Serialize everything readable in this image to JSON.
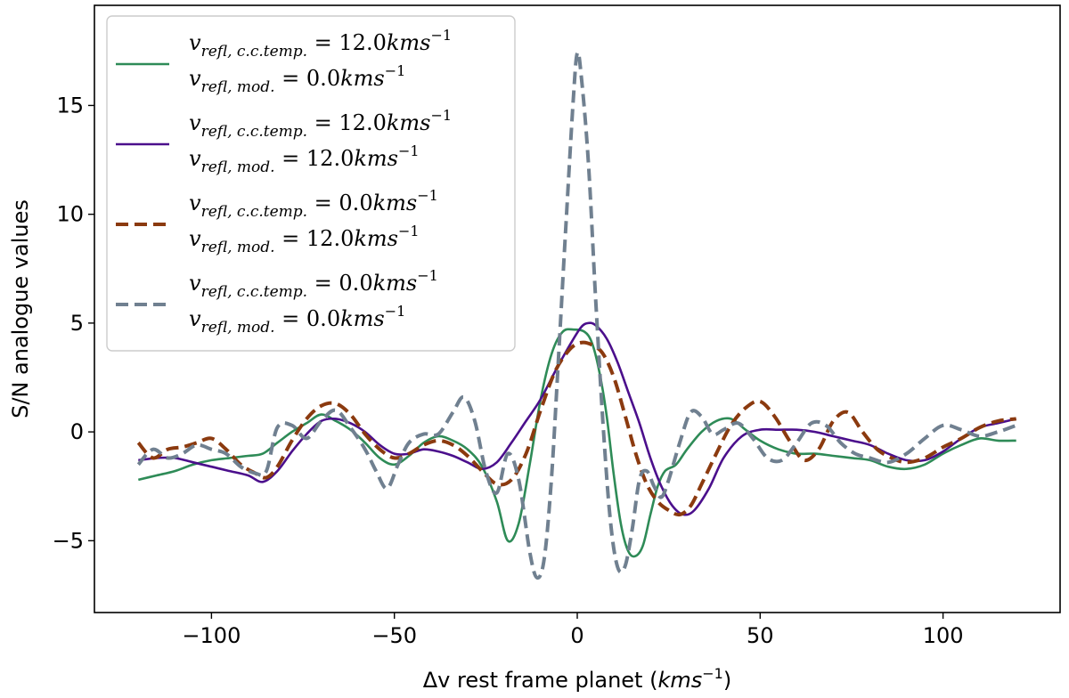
{
  "chart_data": {
    "type": "line",
    "xlabel": "Δv rest frame planet",
    "xlabel_unit": "kms",
    "xlabel_unit_exp": "−1",
    "ylabel": "S/N analogue values",
    "xlim": [
      -132,
      132
    ],
    "ylim": [
      -8.3,
      19.6
    ],
    "x_ticks": [
      -100,
      -50,
      0,
      50,
      100
    ],
    "x_tick_labels": [
      "−100",
      "−50",
      "0",
      "50",
      "100"
    ],
    "y_ticks": [
      -5,
      0,
      5,
      10,
      15
    ],
    "y_tick_labels": [
      "−5",
      "0",
      "5",
      "10",
      "15"
    ],
    "grid": false,
    "legend_position": "top-left",
    "series": [
      {
        "name_line1": "v_refl, c.c.temp. = 12.0kms⁻¹",
        "name_line2": "v_refl, mod. = 0.0kms⁻¹",
        "line1_value": "12.0kms",
        "line2_value": "0.0kms",
        "color": "#2e8b57",
        "dash": "solid",
        "x": [
          -120,
          -115,
          -110,
          -105,
          -100,
          -95,
          -90,
          -86,
          -82,
          -78,
          -74,
          -70,
          -66,
          -62,
          -58,
          -54,
          -50,
          -46,
          -42,
          -38,
          -34,
          -30,
          -26,
          -22,
          -19,
          -16,
          -13,
          -10,
          -7,
          -4,
          -1,
          2,
          4,
          6,
          8,
          10,
          12,
          14,
          16,
          18,
          20,
          22,
          24,
          27,
          30,
          34,
          38,
          42,
          46,
          50,
          55,
          60,
          65,
          70,
          75,
          80,
          85,
          90,
          95,
          100,
          105,
          110,
          115,
          120
        ],
        "y": [
          -2.2,
          -2.0,
          -1.8,
          -1.5,
          -1.3,
          -1.2,
          -1.1,
          -1.0,
          -0.5,
          0.0,
          0.4,
          0.8,
          0.5,
          0.1,
          -0.5,
          -1.2,
          -1.5,
          -1.1,
          -0.5,
          -0.2,
          -0.4,
          -0.8,
          -1.6,
          -3.2,
          -5.0,
          -4.2,
          -1.5,
          1.5,
          3.6,
          4.6,
          4.7,
          4.6,
          4.1,
          2.8,
          0.8,
          -2.0,
          -4.3,
          -5.5,
          -5.7,
          -5.2,
          -3.8,
          -2.5,
          -1.8,
          -1.5,
          -0.8,
          0.0,
          0.5,
          0.6,
          0.1,
          -0.4,
          -0.8,
          -1.0,
          -1.0,
          -1.1,
          -1.2,
          -1.3,
          -1.6,
          -1.7,
          -1.5,
          -1.0,
          -0.6,
          -0.3,
          -0.4,
          -0.4
        ]
      },
      {
        "name_line1": "v_refl, c.c.temp. = 12.0kms⁻¹",
        "name_line2": "v_refl, mod. = 12.0kms⁻¹",
        "line1_value": "12.0kms",
        "line2_value": "12.0kms",
        "color": "#4b0f8c",
        "dash": "solid",
        "x": [
          -120,
          -115,
          -110,
          -105,
          -100,
          -95,
          -90,
          -86,
          -82,
          -78,
          -74,
          -70,
          -66,
          -62,
          -58,
          -54,
          -50,
          -46,
          -42,
          -38,
          -34,
          -30,
          -26,
          -22,
          -18,
          -14,
          -10,
          -6,
          -2,
          1,
          3,
          5,
          8,
          11,
          14,
          17,
          20,
          23,
          26,
          29,
          32,
          36,
          40,
          45,
          50,
          55,
          60,
          65,
          70,
          75,
          80,
          85,
          90,
          95,
          100,
          105,
          110,
          115,
          120
        ],
        "y": [
          -1.3,
          -1.2,
          -1.2,
          -1.4,
          -1.6,
          -1.8,
          -2.0,
          -2.3,
          -1.8,
          -0.9,
          -0.1,
          0.5,
          0.6,
          0.4,
          0.0,
          -0.6,
          -1.0,
          -1.0,
          -0.8,
          -0.9,
          -1.1,
          -1.4,
          -1.7,
          -1.4,
          -0.5,
          0.5,
          1.5,
          2.8,
          4.0,
          4.8,
          5.0,
          4.9,
          4.3,
          3.2,
          1.8,
          0.4,
          -1.2,
          -2.5,
          -3.4,
          -3.8,
          -3.6,
          -2.6,
          -1.2,
          -0.2,
          0.1,
          0.1,
          0.1,
          0.0,
          -0.2,
          -0.4,
          -0.6,
          -1.0,
          -1.3,
          -1.3,
          -0.9,
          -0.3,
          0.2,
          0.4,
          0.6
        ]
      },
      {
        "name_line1": "v_refl, c.c.temp. = 0.0kms⁻¹",
        "name_line2": "v_refl, mod. = 12.0kms⁻¹",
        "line1_value": "0.0kms",
        "line2_value": "12.0kms",
        "color": "#8b3a0f",
        "dash": "dashed",
        "x": [
          -120,
          -116,
          -112,
          -108,
          -104,
          -100,
          -96,
          -92,
          -88,
          -85,
          -82,
          -78,
          -74,
          -70,
          -66,
          -62,
          -58,
          -54,
          -50,
          -46,
          -42,
          -38,
          -34,
          -30,
          -26,
          -22,
          -18,
          -14,
          -10,
          -6,
          -2,
          1,
          4,
          7,
          10,
          13,
          16,
          19,
          22,
          25,
          28,
          31,
          34,
          38,
          42,
          46,
          50,
          54,
          58,
          62,
          66,
          70,
          74,
          78,
          82,
          86,
          90,
          95,
          100,
          105,
          110,
          115,
          120
        ],
        "y": [
          -0.5,
          -1.2,
          -0.8,
          -0.7,
          -0.5,
          -0.3,
          -0.8,
          -1.5,
          -1.9,
          -2.1,
          -1.6,
          -0.4,
          0.6,
          1.2,
          1.3,
          0.8,
          -0.1,
          -0.8,
          -1.2,
          -1.0,
          -0.6,
          -0.4,
          -0.6,
          -1.1,
          -1.8,
          -2.4,
          -2.2,
          -1.0,
          1.0,
          2.8,
          3.8,
          4.1,
          4.0,
          3.6,
          2.5,
          0.8,
          -1.0,
          -2.4,
          -3.2,
          -3.6,
          -3.8,
          -3.4,
          -2.4,
          -1.0,
          0.3,
          1.1,
          1.4,
          0.7,
          -0.4,
          -1.3,
          -0.8,
          0.5,
          0.9,
          0.0,
          -0.8,
          -1.2,
          -1.4,
          -1.2,
          -0.7,
          -0.3,
          0.2,
          0.5,
          0.6
        ]
      },
      {
        "name_line1": "v_refl, c.c.temp. = 0.0kms⁻¹",
        "name_line2": "v_refl, mod. = 0.0kms⁻¹",
        "line1_value": "0.0kms",
        "line2_value": "0.0kms",
        "color": "#708090",
        "dash": "dashed",
        "x": [
          -120,
          -116,
          -112,
          -108,
          -104,
          -100,
          -96,
          -92,
          -88,
          -85,
          -82,
          -78,
          -74,
          -70,
          -66,
          -62,
          -58,
          -55,
          -52,
          -49,
          -46,
          -42,
          -38,
          -34,
          -31,
          -28,
          -25,
          -22,
          -19,
          -16,
          -13,
          -11,
          -9,
          -7,
          -5,
          -3,
          -1,
          0,
          1,
          3,
          5,
          7,
          9,
          11,
          13,
          15,
          17,
          19,
          21,
          23,
          25,
          28,
          31,
          34,
          37,
          40,
          44,
          48,
          52,
          56,
          60,
          64,
          68,
          72,
          76,
          80,
          85,
          90,
          95,
          100,
          105,
          110,
          115,
          120
        ],
        "y": [
          -1.5,
          -0.8,
          -1.2,
          -1.0,
          -0.6,
          -0.8,
          -1.0,
          -1.6,
          -1.9,
          -1.8,
          0.2,
          0.3,
          -0.3,
          0.5,
          1.0,
          0.2,
          -0.8,
          -1.8,
          -2.6,
          -1.5,
          -0.5,
          -0.1,
          -0.1,
          0.9,
          1.6,
          0.5,
          -1.8,
          -2.8,
          -1.0,
          -2.2,
          -5.5,
          -6.7,
          -5.8,
          -2.0,
          3.8,
          9.8,
          15.5,
          17.4,
          16.5,
          12.5,
          6.2,
          0.5,
          -4.0,
          -6.2,
          -6.2,
          -4.5,
          -2.2,
          -1.8,
          -2.5,
          -3.0,
          -2.2,
          -0.5,
          0.9,
          0.7,
          -0.1,
          0.1,
          0.4,
          -0.3,
          -1.2,
          -1.3,
          -0.5,
          0.4,
          0.3,
          -0.5,
          -1.0,
          -1.2,
          -1.4,
          -1.0,
          -0.3,
          0.3,
          0.1,
          -0.2,
          0.0,
          0.3
        ]
      }
    ]
  }
}
